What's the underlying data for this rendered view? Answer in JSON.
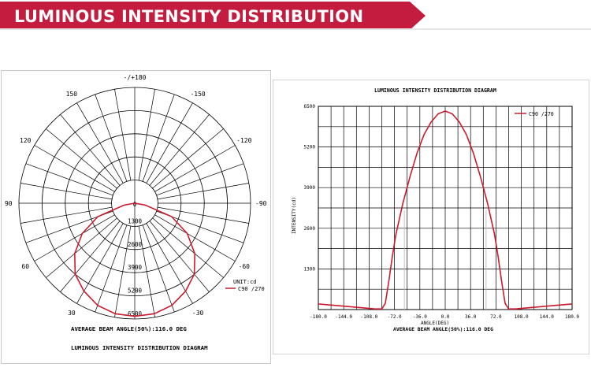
{
  "banner": {
    "title": "LUMINOUS INTENSITY DISTRIBUTION",
    "color": "#c31c3f"
  },
  "chart_data": [
    {
      "type": "polar",
      "title": "LUMINOUS INTENSITY DISTRIBUTION DIAGRAM",
      "caption": "AVERAGE BEAM ANGLE(50%):116.0 DEG",
      "angle_labels": [
        "-/+180",
        "-150",
        "150",
        "-120",
        "120",
        "-90",
        "90",
        "-60",
        "60",
        "-30",
        "30"
      ],
      "radial_ticks": [
        0,
        1300,
        2600,
        3900,
        5200,
        6500
      ],
      "radial_tick_labels": [
        "0",
        "1300",
        "2600",
        "3900",
        "5200",
        "6500"
      ],
      "unit": "UNIT:cd",
      "series": [
        {
          "name": "C90 /270",
          "color": "#cc1a2e",
          "angles": [
            -90,
            -80,
            -70,
            -60,
            -50,
            -40,
            -30,
            -20,
            -10,
            0,
            10,
            20,
            30,
            40,
            50,
            60,
            70,
            80,
            90
          ],
          "values": [
            0,
            600,
            2200,
            3400,
            4400,
            5200,
            5700,
            6100,
            6300,
            6350,
            6300,
            6100,
            5700,
            5200,
            4400,
            3400,
            2200,
            600,
            0
          ]
        }
      ]
    },
    {
      "type": "line",
      "title": "LUMINOUS INTENSITY DISTRIBUTION DIAGRAM",
      "xlabel": "ANGLE(DEG)",
      "ylabel": "INTENSITY(cd)",
      "caption": "AVERAGE BEAM ANGLE(50%):116.0 DEG",
      "xlim": [
        -180,
        180
      ],
      "ylim": [
        0,
        6500
      ],
      "x_ticks": [
        -180,
        -144,
        -108,
        -72,
        -36,
        0,
        36,
        72,
        108,
        144,
        180
      ],
      "x_tick_labels": [
        "-180.0",
        "-144.0",
        "-108.0",
        "-72.0",
        "-36.0",
        "0.0",
        "36.0",
        "72.0",
        "108.0",
        "144.0",
        "180.0"
      ],
      "y_ticks": [
        0,
        1300,
        2600,
        3900,
        5200,
        6500
      ],
      "y_tick_labels": [
        "1300",
        "2600",
        "3900",
        "5200",
        "6500"
      ],
      "beam_lines": [
        -58,
        58
      ],
      "legend": "top-right",
      "series": [
        {
          "name": "C90 /270",
          "color": "#cc1a2e",
          "x": [
            -180,
            -150,
            -120,
            -100,
            -90,
            -85,
            -80,
            -75,
            -70,
            -60,
            -50,
            -40,
            -30,
            -20,
            -10,
            0,
            10,
            20,
            30,
            40,
            50,
            60,
            70,
            75,
            80,
            85,
            90,
            100,
            120,
            150,
            180
          ],
          "y": [
            180,
            120,
            60,
            20,
            20,
            200,
            900,
            1700,
            2400,
            3400,
            4250,
            5000,
            5600,
            6000,
            6260,
            6350,
            6260,
            6000,
            5600,
            5000,
            4250,
            3400,
            2400,
            1700,
            900,
            200,
            20,
            20,
            60,
            120,
            180
          ]
        }
      ]
    }
  ]
}
